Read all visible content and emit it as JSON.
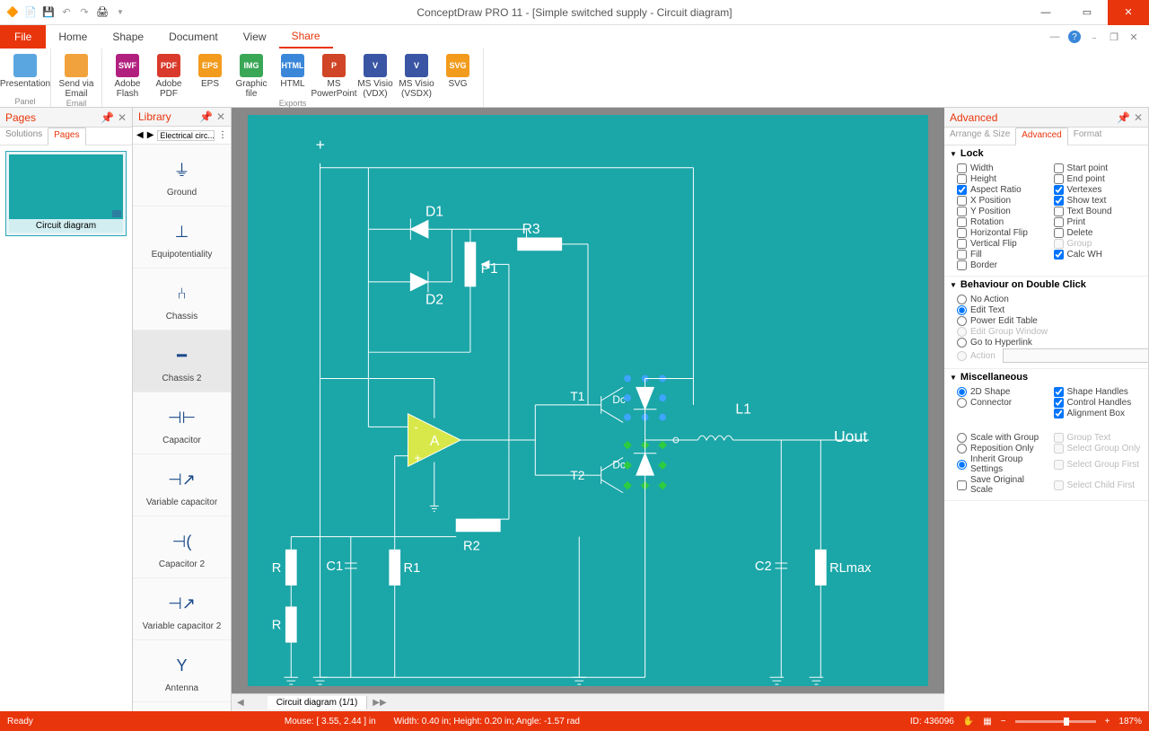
{
  "app": {
    "title": "ConceptDraw PRO 11 - [Simple switched supply - Circuit diagram]"
  },
  "menu": {
    "file": "File",
    "tabs": [
      "Home",
      "Shape",
      "Document",
      "View",
      "Share"
    ],
    "active": "Share"
  },
  "ribbon": {
    "groups": [
      {
        "label": "Panel",
        "items": [
          {
            "label": "Presentation",
            "color": "#5aa6e0"
          }
        ]
      },
      {
        "label": "Email",
        "items": [
          {
            "label": "Send via Email",
            "color": "#f2a23c"
          }
        ]
      },
      {
        "label": "Exports",
        "items": [
          {
            "label": "Adobe Flash",
            "color": "#b2207f",
            "txt": "SWF"
          },
          {
            "label": "Adobe PDF",
            "color": "#d93a2b",
            "txt": "PDF"
          },
          {
            "label": "EPS",
            "color": "#f29b1d",
            "txt": "EPS"
          },
          {
            "label": "Graphic file",
            "color": "#3aa757",
            "txt": "IMG"
          },
          {
            "label": "HTML",
            "color": "#3a87d9",
            "txt": "HTML"
          },
          {
            "label": "MS PowerPoint",
            "color": "#d04525",
            "txt": "P"
          },
          {
            "label": "MS Visio (VDX)",
            "color": "#3955a3",
            "txt": "V"
          },
          {
            "label": "MS Visio (VSDX)",
            "color": "#3955a3",
            "txt": "V"
          },
          {
            "label": "SVG",
            "color": "#f29b1d",
            "txt": "SVG"
          }
        ]
      }
    ]
  },
  "pages": {
    "title": "Pages",
    "subtabs": [
      "Solutions",
      "Pages"
    ],
    "activeSub": "Pages",
    "thumb": "Circuit diagram"
  },
  "library": {
    "title": "Library",
    "combo": "Electrical circ...",
    "items": [
      "Ground",
      "Equipotentiality",
      "Chassis",
      "Chassis 2",
      "Capacitor",
      "Variable capacitor",
      "Capacitor 2",
      "Variable capacitor 2",
      "Antenna"
    ],
    "selected": "Chassis 2"
  },
  "canvas": {
    "bg": "#1ba6a8",
    "labels": {
      "plus": "+",
      "D1": "D1",
      "D2": "D2",
      "R3": "R3",
      "P1": "P1",
      "T1": "T1",
      "T2": "T2",
      "L1": "L1",
      "Uout": "Uout",
      "A": "A",
      "minus": "-",
      "plus2": "+",
      "R": "R",
      "C1": "C1",
      "R1": "R1",
      "R2": "R2",
      "C2": "C2",
      "RLmax": "RLmax",
      "Dc": "Dc",
      "Dc2": "Dc"
    },
    "tab": "Circuit diagram (1/1)"
  },
  "advanced": {
    "title": "Advanced",
    "subtabs": [
      "Arrange & Size",
      "Advanced",
      "Format"
    ],
    "activeSub": "Advanced",
    "lock": {
      "hdr": "Lock",
      "left": [
        {
          "l": "Width",
          "c": false
        },
        {
          "l": "Height",
          "c": false
        },
        {
          "l": "Aspect Ratio",
          "c": true
        },
        {
          "l": "X Position",
          "c": false
        },
        {
          "l": "Y Position",
          "c": false
        },
        {
          "l": "Rotation",
          "c": false
        },
        {
          "l": "Horizontal Flip",
          "c": false
        },
        {
          "l": "Vertical Flip",
          "c": false
        },
        {
          "l": "Fill",
          "c": false
        },
        {
          "l": "Border",
          "c": false
        }
      ],
      "right": [
        {
          "l": "Start point",
          "c": false
        },
        {
          "l": "End point",
          "c": false
        },
        {
          "l": "Vertexes",
          "c": true
        },
        {
          "l": "Show text",
          "c": true
        },
        {
          "l": "Text Bound",
          "c": false
        },
        {
          "l": "Print",
          "c": false
        },
        {
          "l": "Delete",
          "c": false
        },
        {
          "l": "Group",
          "c": false,
          "d": true
        },
        {
          "l": "Calc WH",
          "c": true
        }
      ]
    },
    "dblclick": {
      "hdr": "Behaviour on Double Click",
      "opts": [
        {
          "l": "No Action",
          "c": false
        },
        {
          "l": "Edit Text",
          "c": true
        },
        {
          "l": "Power Edit Table",
          "c": false
        },
        {
          "l": "Edit Group Window",
          "c": false,
          "d": true
        },
        {
          "l": "Go to Hyperlink",
          "c": false
        },
        {
          "l": "Action",
          "c": false,
          "d": true,
          "input": true
        }
      ]
    },
    "misc": {
      "hdr": "Miscellaneous",
      "top": {
        "left": [
          {
            "l": "2D Shape",
            "c": true,
            "t": "r"
          },
          {
            "l": "Connector",
            "c": false,
            "t": "r"
          }
        ],
        "right": [
          {
            "l": "Shape Handles",
            "c": true
          },
          {
            "l": "Control Handles",
            "c": true
          },
          {
            "l": "Alignment Box",
            "c": true
          }
        ]
      },
      "bot": {
        "left": [
          {
            "l": "Scale with Group",
            "c": false,
            "t": "r"
          },
          {
            "l": "Reposition Only",
            "c": false,
            "t": "r"
          },
          {
            "l": "Inherit Group Settings",
            "c": true,
            "t": "r"
          },
          {
            "l": "Save Original Scale",
            "c": false
          }
        ],
        "right": [
          {
            "l": "Group Text",
            "c": false,
            "d": true
          },
          {
            "l": "Select Group Only",
            "c": false,
            "d": true
          },
          {
            "l": "Select Group First",
            "c": false,
            "d": true
          },
          {
            "l": "Select Child First",
            "c": false,
            "d": true
          }
        ]
      }
    }
  },
  "status": {
    "ready": "Ready",
    "mouse": "Mouse: [ 3.55, 2.44 ] in",
    "size": "Width: 0.40 in;  Height: 0.20 in;  Angle: -1.57 rad",
    "id": "ID: 436096",
    "zoom": "187%"
  }
}
